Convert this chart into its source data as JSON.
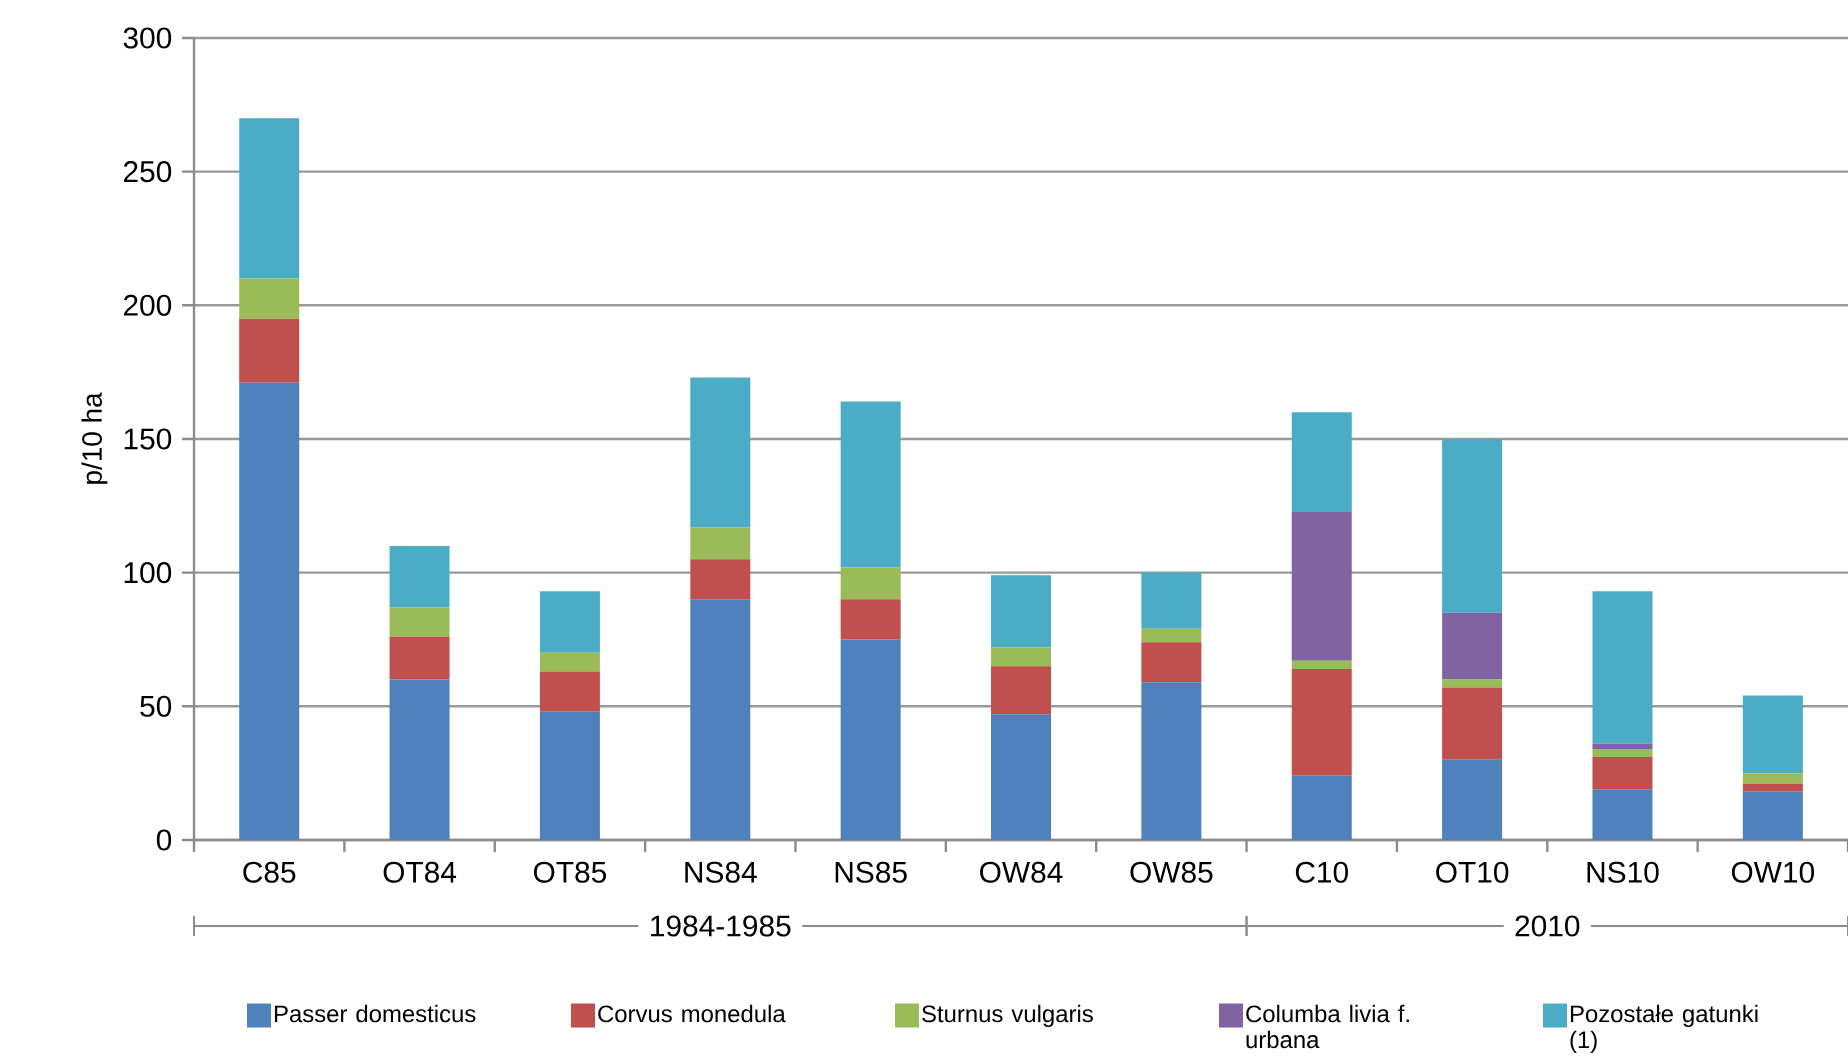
{
  "chart_data": {
    "type": "bar",
    "stacked": true,
    "ylabel": "p/10 ha",
    "categories": [
      "C85",
      "OT84",
      "OT85",
      "NS84",
      "NS85",
      "OW84",
      "OW85",
      "C10",
      "OT10",
      "NS10",
      "OW10"
    ],
    "series": [
      {
        "name": "Passer domesticus",
        "color": "#4f81bd",
        "values": [
          171,
          60,
          48,
          90,
          75,
          47,
          59,
          24,
          30,
          19,
          18
        ]
      },
      {
        "name": "Corvus monedula",
        "color": "#c0504d",
        "values": [
          24,
          16,
          15,
          15,
          15,
          18,
          15,
          40,
          27,
          12,
          3
        ]
      },
      {
        "name": "Sturnus vulgaris",
        "color": "#9bbb59",
        "values": [
          15,
          11,
          7,
          12,
          12,
          7,
          5,
          3,
          3,
          3,
          4
        ]
      },
      {
        "name": "Columba livia f. urbana",
        "color": "#8064a2",
        "values": [
          null,
          null,
          null,
          null,
          null,
          null,
          null,
          56,
          25,
          2,
          null
        ]
      },
      {
        "name": "Pozostałe gatunki (1)",
        "color": "#4bacc6",
        "values": [
          60,
          23,
          23,
          56,
          62,
          27,
          21,
          37,
          65,
          57,
          29
        ]
      }
    ],
    "ylim": [
      0,
      300
    ],
    "yticks": [
      0,
      50,
      100,
      150,
      200,
      250,
      300
    ],
    "grid": "y",
    "legend": "bottom",
    "annotations": [
      "1984-1985",
      "2010"
    ]
  }
}
